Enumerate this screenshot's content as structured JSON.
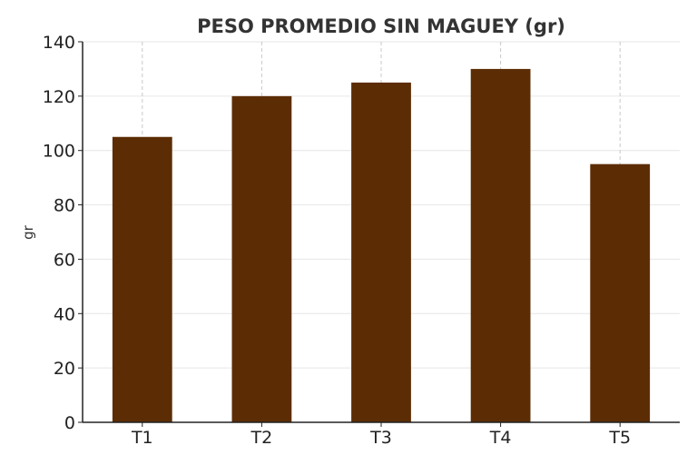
{
  "chart_data": {
    "type": "bar",
    "title": "PESO PROMEDIO SIN MAGUEY (gr)",
    "xlabel": "",
    "ylabel": "gr",
    "categories": [
      "T1",
      "T2",
      "T3",
      "T4",
      "T5"
    ],
    "values": [
      105,
      120,
      125,
      130,
      95
    ],
    "ylim": [
      0,
      140
    ],
    "yticks": [
      0,
      20,
      40,
      60,
      80,
      100,
      120,
      140
    ],
    "grid": true,
    "legend": "none",
    "colors": {
      "bar": "#5c2d05",
      "grid_y": "#e6e6e6",
      "grid_x": "#c8c8c8",
      "axis": "#222222",
      "title": "#333333"
    }
  }
}
